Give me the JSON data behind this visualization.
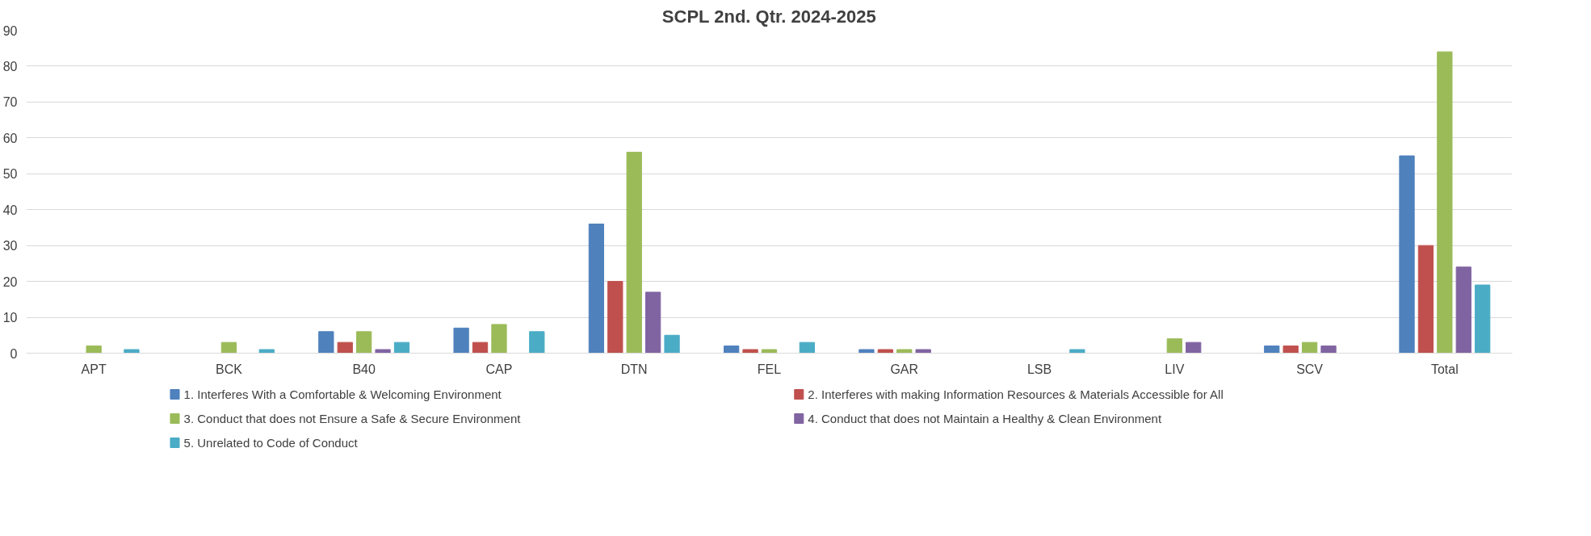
{
  "chart_data": {
    "type": "bar",
    "title": "SCPL 2nd. Qtr. 2024-2025",
    "categories": [
      "APT",
      "BCK",
      "B40",
      "CAP",
      "DTN",
      "FEL",
      "GAR",
      "LSB",
      "LIV",
      "SCV",
      "Total"
    ],
    "series": [
      {
        "name": "1. Interferes With a Comfortable & Welcoming Environment",
        "color": "#4f81bd",
        "values": [
          null,
          null,
          6,
          7,
          36,
          2,
          1,
          null,
          null,
          2,
          55
        ]
      },
      {
        "name": "2. Interferes with making Information Resources & Materials Accessible for All",
        "color": "#c0504d",
        "values": [
          null,
          null,
          3,
          3,
          20,
          1,
          1,
          null,
          null,
          2,
          30
        ]
      },
      {
        "name": "3. Conduct that does not Ensure a Safe & Secure Environment",
        "color": "#9bbb59",
        "values": [
          2,
          3,
          6,
          8,
          56,
          1,
          1,
          null,
          4,
          3,
          84
        ]
      },
      {
        "name": "4. Conduct that does not Maintain a Healthy & Clean Environment",
        "color": "#8064a2",
        "values": [
          null,
          null,
          1,
          null,
          17,
          null,
          1,
          null,
          3,
          2,
          24
        ]
      },
      {
        "name": "5. Unrelated to Code of Conduct",
        "color": "#4bacc6",
        "values": [
          1,
          1,
          3,
          6,
          5,
          3,
          null,
          1,
          null,
          null,
          19
        ]
      }
    ],
    "ylim": [
      0,
      90
    ],
    "yticks": [
      0,
      10,
      20,
      30,
      40,
      50,
      60,
      70,
      80,
      90
    ],
    "grid": "y",
    "legend": "bottom"
  }
}
